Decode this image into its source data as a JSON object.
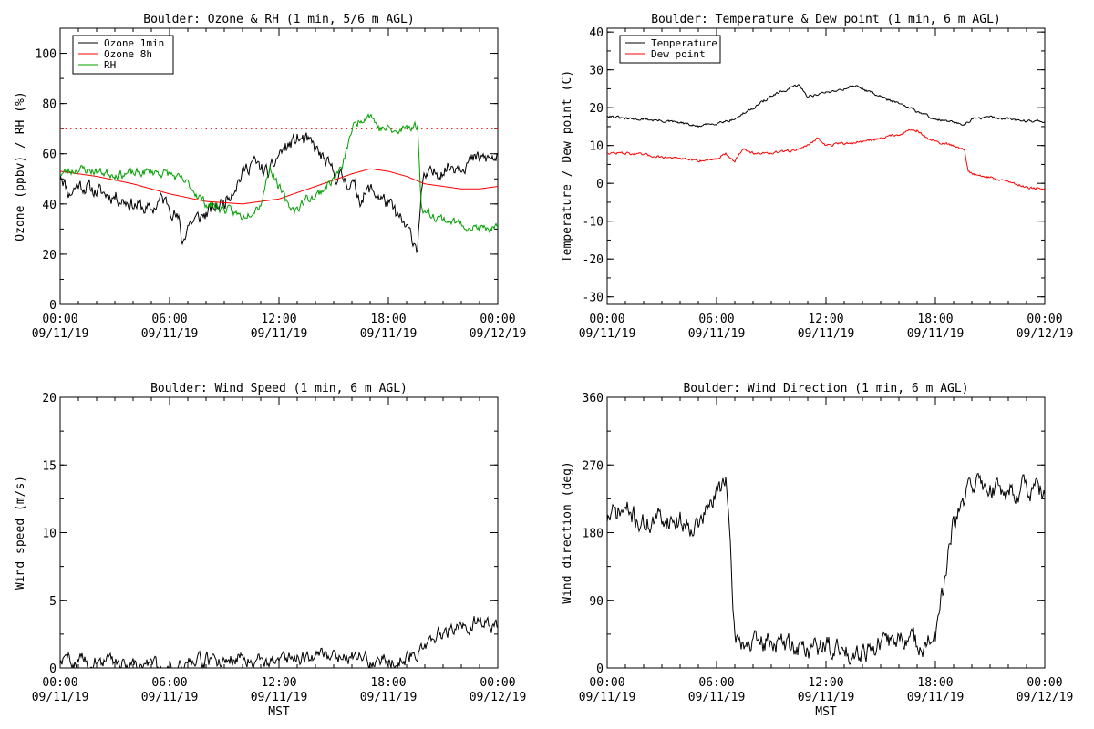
{
  "colors": {
    "black": "#000000",
    "red": "#ff0000",
    "green": "#00a000",
    "threshold": "#ff0000"
  },
  "chart_data": [
    {
      "id": "ozone_rh",
      "type": "line",
      "title": "Boulder: Ozone & RH (1 min, 5/6 m AGL)",
      "xlabel": "",
      "ylabel": "Ozone (ppbv) / RH (%)",
      "ylim": [
        0,
        110
      ],
      "yticks": [
        "0",
        "20",
        "40",
        "60",
        "80",
        "100"
      ],
      "ytick_values": [
        0,
        20,
        40,
        60,
        80,
        100
      ],
      "xlim_hours": [
        0,
        24
      ],
      "xticks": [
        {
          "time": "00:00",
          "date": "09/11/19"
        },
        {
          "time": "06:00",
          "date": "09/11/19"
        },
        {
          "time": "12:00",
          "date": "09/11/19"
        },
        {
          "time": "18:00",
          "date": "09/11/19"
        },
        {
          "time": "00:00",
          "date": "09/12/19"
        }
      ],
      "legend_position": "top-left",
      "reference_line": {
        "y": 70,
        "style": "dotted",
        "color": "#ff0000"
      },
      "series": [
        {
          "name": "Ozone 1min",
          "color": "#000000",
          "noise": 2.5,
          "seed": 11,
          "hours": [
            0,
            0.5,
            1,
            2,
            3,
            4,
            5,
            5.5,
            6,
            6.5,
            6.7,
            7,
            8,
            9,
            10,
            10.5,
            11,
            11.5,
            12,
            12.5,
            13,
            13.5,
            14,
            15,
            16,
            16.5,
            17,
            17.5,
            18,
            18.5,
            19,
            19.6,
            19.8,
            20,
            21,
            22,
            23,
            24
          ],
          "values": [
            53,
            44,
            48,
            45,
            43,
            40,
            37,
            42,
            40,
            33,
            24,
            32,
            36,
            41,
            52,
            57,
            54,
            52,
            60,
            63,
            66,
            65,
            62,
            52,
            48,
            42,
            46,
            43,
            40,
            35,
            30,
            23,
            45,
            50,
            54,
            56,
            58,
            58
          ]
        },
        {
          "name": "Ozone 8h",
          "color": "#ff0000",
          "noise": 0,
          "seed": 0,
          "hours": [
            0,
            2,
            4,
            6,
            8,
            10,
            12,
            14,
            16,
            17,
            18,
            19,
            20,
            21,
            22,
            23,
            24
          ],
          "values": [
            53,
            51,
            48,
            44,
            41,
            40,
            42,
            47,
            52,
            54,
            53,
            51,
            48,
            47,
            46,
            46,
            47
          ]
        },
        {
          "name": "RH",
          "color": "#00a000",
          "noise": 1.5,
          "seed": 23,
          "hours": [
            0,
            1,
            2,
            3,
            4,
            5,
            6,
            7,
            8,
            9,
            10,
            11,
            11.5,
            12,
            12.5,
            13,
            13.5,
            14,
            15,
            15.5,
            16,
            16.5,
            17,
            17.5,
            18,
            18.5,
            19,
            19.6,
            19.8,
            20,
            21,
            22,
            23,
            24
          ],
          "values": [
            52,
            54,
            53,
            52,
            52,
            53,
            52,
            48,
            40,
            38,
            35,
            40,
            55,
            47,
            39,
            38,
            42,
            43,
            50,
            55,
            70,
            74,
            76,
            70,
            70,
            68,
            71,
            71,
            40,
            37,
            34,
            32,
            30,
            30
          ]
        }
      ]
    },
    {
      "id": "temp_dew",
      "type": "line",
      "title": "Boulder: Temperature & Dew point (1 min, 6 m AGL)",
      "xlabel": "",
      "ylabel": "Temperature / Dew point (C)",
      "ylim": [
        -32,
        41
      ],
      "yticks": [
        "-30",
        "-20",
        "-10",
        "0",
        "10",
        "20",
        "30",
        "40"
      ],
      "ytick_values": [
        -30,
        -20,
        -10,
        0,
        10,
        20,
        30,
        40
      ],
      "xlim_hours": [
        0,
        24
      ],
      "xticks": [
        {
          "time": "00:00",
          "date": "09/11/19"
        },
        {
          "time": "06:00",
          "date": "09/11/19"
        },
        {
          "time": "12:00",
          "date": "09/11/19"
        },
        {
          "time": "18:00",
          "date": "09/11/19"
        },
        {
          "time": "00:00",
          "date": "09/12/19"
        }
      ],
      "legend_position": "top-left",
      "series": [
        {
          "name": "Temperature",
          "color": "#000000",
          "noise": 0.3,
          "seed": 31,
          "hours": [
            0,
            1,
            2,
            3,
            4,
            5,
            6,
            7,
            8,
            9,
            10,
            10.5,
            11,
            12,
            13,
            13.5,
            14,
            15,
            16,
            17,
            18,
            19,
            19.5,
            20,
            21,
            22,
            23,
            24
          ],
          "values": [
            18,
            17,
            17,
            16.5,
            16,
            15,
            16,
            17,
            20,
            23,
            25,
            26,
            23,
            24,
            25,
            26,
            25,
            23,
            21,
            19,
            17,
            16,
            15.5,
            17,
            17.5,
            17,
            16.5,
            16.5
          ]
        },
        {
          "name": "Dew point",
          "color": "#ff0000",
          "noise": 0.3,
          "seed": 47,
          "hours": [
            0,
            1,
            2,
            3,
            4,
            5,
            6,
            6.5,
            7,
            7.5,
            8,
            9,
            10,
            11,
            11.5,
            12,
            13,
            14,
            15,
            16,
            16.5,
            17,
            17.5,
            18,
            19,
            19.6,
            19.8,
            20,
            21,
            22,
            23,
            24
          ],
          "values": [
            8,
            8,
            7.5,
            7,
            6.5,
            6,
            6.5,
            8,
            6,
            9,
            8,
            8,
            8.5,
            10,
            12,
            10,
            10.5,
            11,
            12,
            13,
            14,
            14,
            12,
            11,
            10,
            9,
            3,
            2.5,
            1.5,
            0.5,
            -1,
            -1.5
          ]
        }
      ]
    },
    {
      "id": "wind_speed",
      "type": "line",
      "title": "Boulder: Wind Speed (1 min, 6 m AGL)",
      "xlabel": "MST",
      "ylabel": "Wind speed (m/s)",
      "ylim": [
        0,
        20
      ],
      "yticks": [
        "0",
        "5",
        "10",
        "15",
        "20"
      ],
      "ytick_values": [
        0,
        5,
        10,
        15,
        20
      ],
      "xlim_hours": [
        0,
        24
      ],
      "xticks": [
        {
          "time": "00:00",
          "date": "09/11/19"
        },
        {
          "time": "06:00",
          "date": "09/11/19"
        },
        {
          "time": "12:00",
          "date": "09/11/19"
        },
        {
          "time": "18:00",
          "date": "09/11/19"
        },
        {
          "time": "00:00",
          "date": "09/12/19"
        }
      ],
      "series": [
        {
          "name": "",
          "color": "#000000",
          "noise": 0.45,
          "seed": 59,
          "clip_min": 0,
          "hours": [
            0,
            1,
            2,
            3,
            4,
            5,
            6,
            7,
            8,
            9,
            10,
            11,
            12,
            13,
            14,
            15,
            16,
            17,
            18,
            19,
            20,
            20.5,
            21,
            22,
            23,
            24
          ],
          "values": [
            0.5,
            0.6,
            0.4,
            0.5,
            0.3,
            0.2,
            0.1,
            0.3,
            0.5,
            0.6,
            0.8,
            0.6,
            0.6,
            0.8,
            1.0,
            1.0,
            0.8,
            0.6,
            0.5,
            0.7,
            1.5,
            2.5,
            2.5,
            3.0,
            3.5,
            3.0
          ]
        }
      ]
    },
    {
      "id": "wind_dir",
      "type": "line",
      "title": "Boulder: Wind Direction (1 min, 6 m AGL)",
      "xlabel": "MST",
      "ylabel": "Wind direction (deg)",
      "ylim": [
        0,
        360
      ],
      "yticks": [
        "0",
        "90",
        "180",
        "270",
        "360"
      ],
      "ytick_values": [
        0,
        90,
        180,
        270,
        360
      ],
      "xlim_hours": [
        0,
        24
      ],
      "xticks": [
        {
          "time": "00:00",
          "date": "09/11/19"
        },
        {
          "time": "06:00",
          "date": "09/11/19"
        },
        {
          "time": "12:00",
          "date": "09/11/19"
        },
        {
          "time": "18:00",
          "date": "09/11/19"
        },
        {
          "time": "00:00",
          "date": "09/12/19"
        }
      ],
      "series": [
        {
          "name": "",
          "color": "#000000",
          "noise": 12,
          "seed": 71,
          "clip_min": 0,
          "clip_max": 360,
          "hours": [
            0,
            1,
            2,
            3,
            4,
            5,
            6,
            6.5,
            7,
            8,
            9,
            10,
            11,
            12,
            13,
            14,
            15,
            16,
            17,
            17.5,
            18,
            19,
            19.5,
            20,
            21,
            22,
            23,
            24
          ],
          "values": [
            200,
            210,
            190,
            200,
            195,
            190,
            230,
            260,
            40,
            30,
            35,
            30,
            25,
            30,
            20,
            25,
            30,
            40,
            35,
            30,
            40,
            190,
            215,
            250,
            240,
            235,
            240,
            230
          ]
        }
      ]
    }
  ]
}
